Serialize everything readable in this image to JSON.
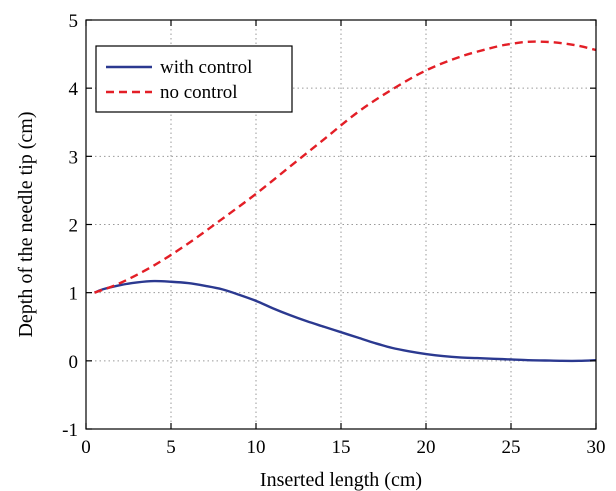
{
  "chart_data": {
    "type": "line",
    "title": "",
    "xlabel": "Inserted length (cm)",
    "ylabel": "Depth of the needle tip (cm)",
    "xlim": [
      0,
      30
    ],
    "ylim": [
      -1,
      5
    ],
    "xticks": [
      0,
      5,
      10,
      15,
      20,
      25,
      30
    ],
    "xtick_labels": [
      "0",
      "5",
      "10",
      "15",
      "20",
      "25",
      "30"
    ],
    "yticks": [
      -1,
      0,
      1,
      2,
      3,
      4,
      5
    ],
    "ytick_labels": [
      "-1",
      "0",
      "1",
      "2",
      "3",
      "4",
      "5"
    ],
    "grid": true,
    "legend_position": "top-left",
    "series": [
      {
        "name": "with control",
        "color": "#2b3990",
        "style": "solid",
        "x": [
          0.5,
          1,
          2,
          3,
          4,
          5,
          6,
          7,
          8,
          9,
          10,
          11,
          12,
          13,
          14,
          15,
          16,
          17,
          18,
          19,
          20,
          21,
          22,
          23,
          24,
          25,
          26,
          27,
          28,
          29,
          30
        ],
        "y": [
          1.0,
          1.05,
          1.11,
          1.15,
          1.17,
          1.16,
          1.14,
          1.1,
          1.05,
          0.97,
          0.88,
          0.77,
          0.67,
          0.58,
          0.5,
          0.42,
          0.34,
          0.26,
          0.19,
          0.14,
          0.1,
          0.07,
          0.05,
          0.04,
          0.03,
          0.02,
          0.01,
          0.005,
          0.0,
          0.0,
          0.01
        ]
      },
      {
        "name": "no control",
        "color": "#e31e26",
        "style": "dashed",
        "x": [
          0.5,
          2,
          4,
          6,
          8,
          10,
          12,
          14,
          16,
          18,
          20,
          22,
          24,
          25,
          26,
          27,
          28,
          29,
          30
        ],
        "y": [
          1.0,
          1.14,
          1.4,
          1.72,
          2.08,
          2.45,
          2.85,
          3.25,
          3.65,
          3.98,
          4.26,
          4.46,
          4.6,
          4.65,
          4.68,
          4.68,
          4.66,
          4.62,
          4.56
        ]
      }
    ]
  }
}
